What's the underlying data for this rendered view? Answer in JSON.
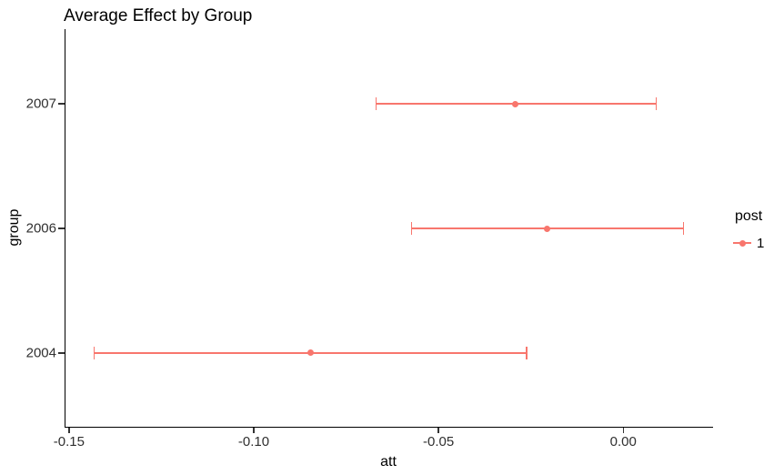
{
  "chart_data": {
    "type": "scatter",
    "variant": "pointrange-with-errorbars",
    "title": "Average Effect by Group",
    "xlabel": "att",
    "ylabel": "group",
    "grid": false,
    "background": "#ffffff",
    "axis_color": "#000000",
    "tick_text_color": "#303030",
    "xlim": [
      -0.1512,
      0.0243
    ],
    "x_ticks": [
      -0.15,
      -0.1,
      -0.05,
      0.0
    ],
    "x_tick_labels": [
      "-0.15",
      "-0.10",
      "-0.05",
      "0.00"
    ],
    "categories_bottom_to_top": [
      "2004",
      "2006",
      "2007"
    ],
    "series": [
      {
        "name": "1",
        "color": "#F8766D",
        "points": [
          {
            "group": "2007",
            "att": -0.0292,
            "lower": -0.0669,
            "upper": 0.0089
          },
          {
            "group": "2006",
            "att": -0.0206,
            "lower": -0.0573,
            "upper": 0.0163
          },
          {
            "group": "2004",
            "att": -0.0846,
            "lower": -0.1432,
            "upper": -0.0261
          }
        ]
      }
    ],
    "legend": {
      "title": "post",
      "position": "right",
      "entries": [
        {
          "label": "1",
          "color": "#F8766D"
        }
      ]
    }
  }
}
